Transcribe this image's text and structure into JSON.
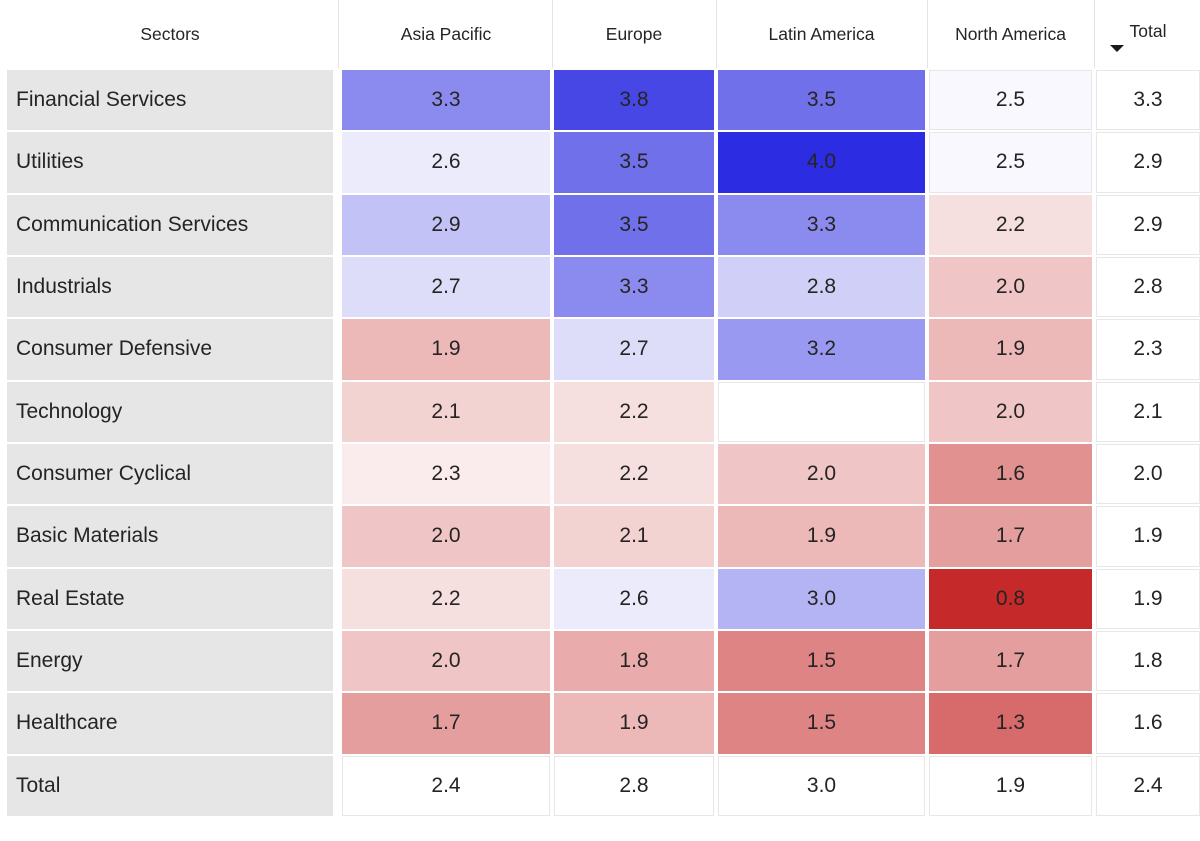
{
  "chart_data": {
    "type": "heatmap",
    "title": "",
    "corner_header": "Sectors",
    "columns": [
      "Asia Pacific",
      "Europe",
      "Latin America",
      "North America"
    ],
    "total_column": "Total",
    "rows": [
      "Financial Services",
      "Utilities",
      "Communication Services",
      "Industrials",
      "Consumer Defensive",
      "Technology",
      "Consumer Cyclical",
      "Basic Materials",
      "Real Estate",
      "Energy",
      "Healthcare"
    ],
    "values": [
      [
        3.3,
        3.8,
        3.5,
        2.5
      ],
      [
        2.6,
        3.5,
        4.0,
        2.5
      ],
      [
        2.9,
        3.5,
        3.3,
        2.2
      ],
      [
        2.7,
        3.3,
        2.8,
        2.0
      ],
      [
        1.9,
        2.7,
        3.2,
        1.9
      ],
      [
        2.1,
        2.2,
        null,
        2.0
      ],
      [
        2.3,
        2.2,
        2.0,
        1.6
      ],
      [
        2.0,
        2.1,
        1.9,
        1.7
      ],
      [
        2.2,
        2.6,
        3.0,
        0.8
      ],
      [
        2.0,
        1.8,
        1.5,
        1.7
      ],
      [
        1.7,
        1.9,
        1.5,
        1.3
      ]
    ],
    "row_totals": [
      3.3,
      2.9,
      2.9,
      2.8,
      2.3,
      2.1,
      2.0,
      1.9,
      1.9,
      1.8,
      1.6
    ],
    "total_row_label": "Total",
    "column_totals": [
      2.4,
      2.8,
      3.0,
      1.9
    ],
    "grand_total": 2.4,
    "sort": {
      "column": "Total",
      "direction": "descending",
      "icon": "triangle-down"
    },
    "value_format": "0.0",
    "color_scale": {
      "type": "diverging",
      "min": {
        "value": 0.8,
        "color": "#c62929"
      },
      "center": {
        "value": 2.45,
        "color": "#ffffff"
      },
      "max": {
        "value": 4.0,
        "color": "#2c2ce2"
      },
      "totals_uncolored": true
    },
    "layout_hints": {
      "legend": "none",
      "grid": "light gridlines on uncolored cells",
      "row_header_bg": "#e6e6e6",
      "gridline_color": "#e7e7e7",
      "text_color": "#252423"
    }
  }
}
